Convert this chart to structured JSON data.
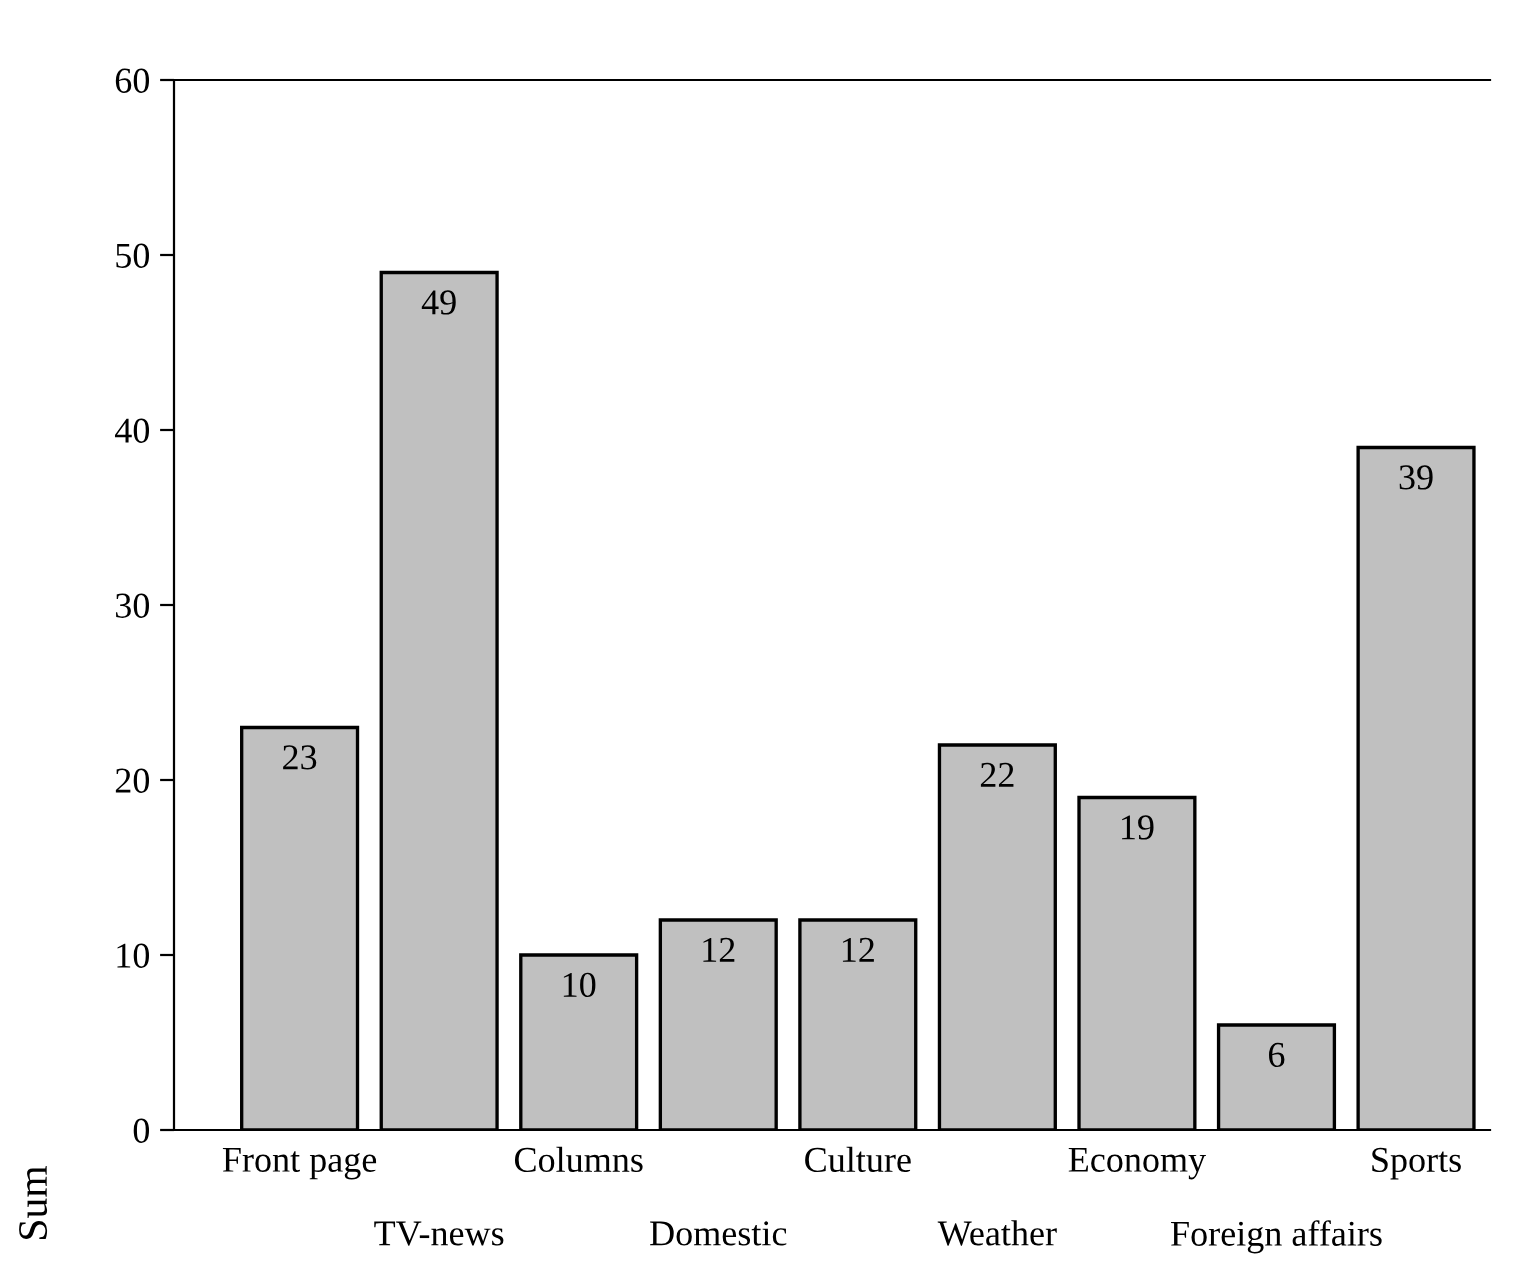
{
  "chart_data": {
    "type": "bar",
    "ylabel": "Sum",
    "categories": [
      "Front page",
      "TV-news",
      "Columns",
      "Domestic",
      "Culture",
      "Weather",
      "Economy",
      "Foreign affairs",
      "Sports"
    ],
    "values": [
      23,
      49,
      10,
      12,
      12,
      22,
      19,
      6,
      39
    ],
    "color": "#c0c0c0",
    "ylim": [
      0,
      60
    ],
    "yticks": [
      0,
      10,
      20,
      30,
      40,
      50,
      60
    ],
    "data_labels": true,
    "grid": false,
    "legend": false
  }
}
